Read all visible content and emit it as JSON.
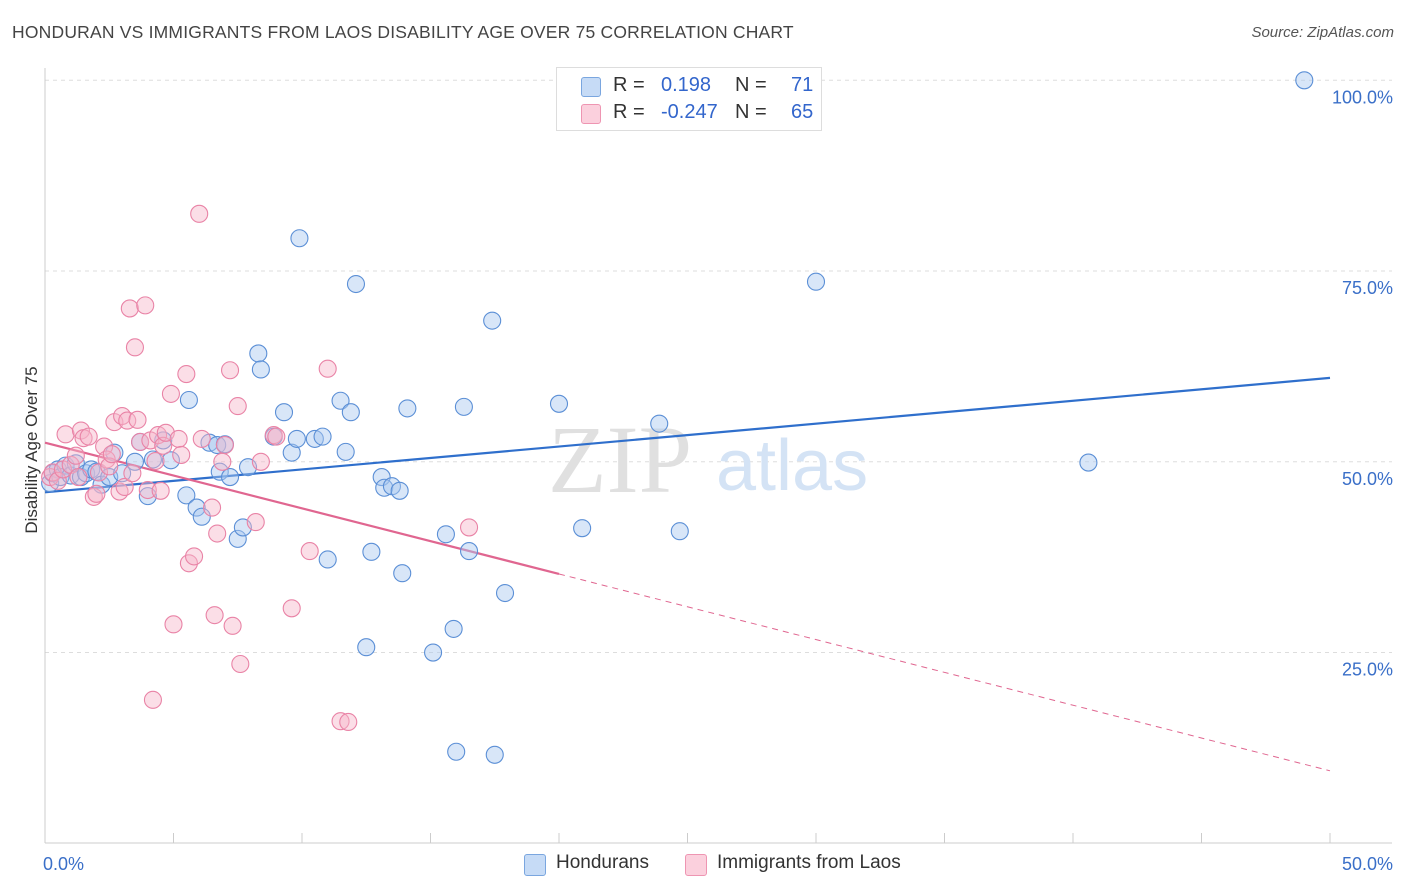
{
  "title": "HONDURAN VS IMMIGRANTS FROM LAOS DISABILITY AGE OVER 75 CORRELATION CHART",
  "source": "Source: ZipAtlas.com",
  "watermark": {
    "zip": "ZIP",
    "atlas": "atlas"
  },
  "legend": {
    "rows": [
      {
        "r_label": "R =",
        "r_value": "0.198",
        "n_label": "N =",
        "n_value": "71",
        "color": "#a9c8f0"
      },
      {
        "r_label": "R =",
        "r_value": "-0.247",
        "n_label": "N =",
        "n_value": "65",
        "color": "#f7b6c9"
      }
    ]
  },
  "bottom_legend": [
    {
      "label": "Hondurans",
      "color": "#a9c8f0"
    },
    {
      "label": "Immigrants from Laos",
      "color": "#f7b6c9"
    }
  ],
  "chart_data": {
    "type": "scatter",
    "title": "HONDURAN VS IMMIGRANTS FROM LAOS DISABILITY AGE OVER 75 CORRELATION CHART",
    "xlabel": "",
    "ylabel": "Disability Age Over 75",
    "xlim": [
      0,
      50
    ],
    "ylim": [
      0,
      105
    ],
    "x_tick_labels": [
      "0.0%",
      "50.0%"
    ],
    "y_ticks": [
      25,
      50,
      75,
      100
    ],
    "y_tick_labels": [
      "25.0%",
      "50.0%",
      "75.0%",
      "100.0%"
    ],
    "grid": "horizontal dashed",
    "legend_position": "top-center",
    "colors": {
      "hondurans": "#4a85d4",
      "laos": "#e8739c",
      "honduran_line": "#2f6fcc",
      "laos_line": "#e06690"
    },
    "series": [
      {
        "name": "Hondurans",
        "points": [
          [
            0.2,
            47.2
          ],
          [
            0.3,
            48.5
          ],
          [
            0.5,
            49.0
          ],
          [
            0.6,
            48.0
          ],
          [
            0.8,
            49.5
          ],
          [
            1.0,
            48.2
          ],
          [
            1.2,
            49.8
          ],
          [
            1.4,
            48.0
          ],
          [
            1.6,
            48.5
          ],
          [
            1.8,
            49.0
          ],
          [
            2.0,
            48.7
          ],
          [
            2.2,
            47.0
          ],
          [
            2.5,
            48.0
          ],
          [
            2.7,
            51.2
          ],
          [
            3.0,
            48.5
          ],
          [
            3.5,
            50.0
          ],
          [
            3.7,
            52.6
          ],
          [
            4.0,
            45.5
          ],
          [
            4.2,
            50.3
          ],
          [
            4.6,
            52.8
          ],
          [
            4.9,
            50.2
          ],
          [
            5.5,
            45.6
          ],
          [
            5.6,
            58.1
          ],
          [
            5.9,
            44.0
          ],
          [
            6.1,
            42.8
          ],
          [
            6.4,
            52.5
          ],
          [
            6.7,
            52.2
          ],
          [
            6.8,
            48.7
          ],
          [
            7.0,
            52.3
          ],
          [
            7.2,
            48.0
          ],
          [
            7.5,
            39.9
          ],
          [
            7.7,
            41.4
          ],
          [
            7.9,
            49.3
          ],
          [
            8.3,
            64.2
          ],
          [
            8.4,
            62.1
          ],
          [
            8.9,
            53.3
          ],
          [
            9.3,
            56.5
          ],
          [
            9.6,
            51.2
          ],
          [
            9.8,
            53.0
          ],
          [
            9.9,
            79.3
          ],
          [
            10.5,
            53.0
          ],
          [
            10.8,
            53.3
          ],
          [
            11.0,
            37.2
          ],
          [
            11.5,
            58.0
          ],
          [
            11.7,
            51.3
          ],
          [
            11.9,
            56.5
          ],
          [
            12.1,
            73.3
          ],
          [
            12.5,
            25.7
          ],
          [
            12.7,
            38.2
          ],
          [
            13.1,
            48.0
          ],
          [
            13.2,
            46.6
          ],
          [
            13.5,
            46.8
          ],
          [
            13.8,
            46.2
          ],
          [
            13.9,
            35.4
          ],
          [
            14.1,
            57.0
          ],
          [
            15.1,
            25.0
          ],
          [
            15.6,
            40.5
          ],
          [
            15.9,
            28.1
          ],
          [
            16.0,
            12.0
          ],
          [
            16.3,
            57.2
          ],
          [
            16.5,
            38.3
          ],
          [
            17.4,
            68.5
          ],
          [
            17.5,
            11.6
          ],
          [
            17.9,
            32.8
          ],
          [
            20.0,
            57.6
          ],
          [
            20.9,
            41.3
          ],
          [
            23.9,
            55.0
          ],
          [
            24.7,
            40.9
          ],
          [
            30.0,
            73.6
          ],
          [
            40.6,
            49.9
          ],
          [
            49.0,
            100.0
          ]
        ]
      },
      {
        "name": "Immigrants from Laos",
        "points": [
          [
            0.2,
            48.0
          ],
          [
            0.3,
            48.6
          ],
          [
            0.5,
            47.5
          ],
          [
            0.7,
            49.0
          ],
          [
            0.8,
            53.6
          ],
          [
            1.0,
            49.6
          ],
          [
            1.2,
            50.8
          ],
          [
            1.3,
            48.0
          ],
          [
            1.4,
            54.1
          ],
          [
            1.5,
            53.1
          ],
          [
            1.7,
            53.3
          ],
          [
            1.9,
            45.4
          ],
          [
            2.0,
            45.8
          ],
          [
            2.1,
            48.6
          ],
          [
            2.3,
            52.0
          ],
          [
            2.4,
            50.3
          ],
          [
            2.5,
            49.4
          ],
          [
            2.6,
            51.0
          ],
          [
            2.7,
            55.2
          ],
          [
            2.9,
            46.1
          ],
          [
            3.0,
            56.0
          ],
          [
            3.1,
            46.7
          ],
          [
            3.2,
            55.4
          ],
          [
            3.3,
            70.1
          ],
          [
            3.4,
            48.5
          ],
          [
            3.5,
            65.0
          ],
          [
            3.6,
            55.5
          ],
          [
            3.7,
            52.6
          ],
          [
            3.9,
            70.5
          ],
          [
            4.0,
            46.3
          ],
          [
            4.1,
            52.8
          ],
          [
            4.2,
            18.8
          ],
          [
            4.3,
            50.1
          ],
          [
            4.4,
            53.5
          ],
          [
            4.5,
            46.2
          ],
          [
            4.6,
            52.1
          ],
          [
            4.7,
            53.8
          ],
          [
            4.9,
            58.9
          ],
          [
            5.0,
            28.7
          ],
          [
            5.2,
            53.0
          ],
          [
            5.3,
            50.9
          ],
          [
            5.5,
            61.5
          ],
          [
            5.6,
            36.7
          ],
          [
            5.8,
            37.6
          ],
          [
            6.0,
            82.5
          ],
          [
            6.1,
            53.0
          ],
          [
            6.5,
            44.0
          ],
          [
            6.6,
            29.9
          ],
          [
            6.7,
            40.6
          ],
          [
            6.9,
            50.0
          ],
          [
            7.0,
            52.2
          ],
          [
            7.2,
            62.0
          ],
          [
            7.3,
            28.5
          ],
          [
            7.5,
            57.3
          ],
          [
            7.6,
            23.5
          ],
          [
            8.2,
            42.1
          ],
          [
            8.4,
            50.0
          ],
          [
            8.9,
            53.5
          ],
          [
            9.0,
            53.3
          ],
          [
            9.6,
            30.8
          ],
          [
            10.3,
            38.3
          ],
          [
            11.0,
            62.2
          ],
          [
            11.5,
            16.0
          ],
          [
            11.8,
            15.9
          ],
          [
            16.5,
            41.4
          ]
        ]
      }
    ],
    "trend_lines": [
      {
        "series": "Hondurans",
        "x": [
          0,
          50
        ],
        "y": [
          46.0,
          61.0
        ]
      },
      {
        "series": "Immigrants from Laos",
        "x": [
          0,
          20
        ],
        "y": [
          52.5,
          35.3
        ],
        "dashed_extension_to": [
          50,
          9.5
        ]
      }
    ]
  }
}
